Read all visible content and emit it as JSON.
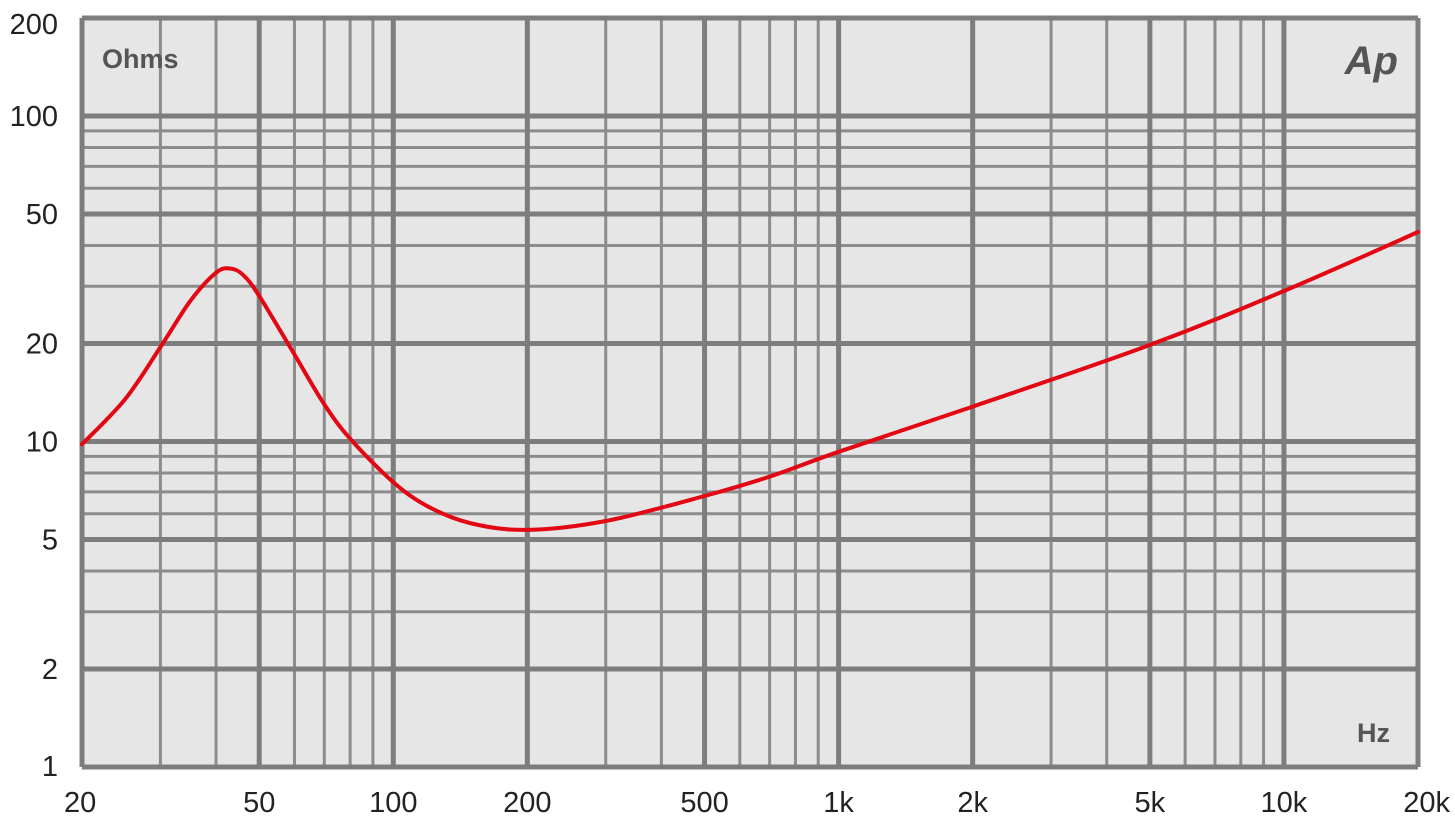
{
  "chart_data": {
    "type": "line",
    "x_scale": "log",
    "y_scale": "log",
    "xlim": [
      20,
      20000
    ],
    "ylim": [
      1,
      200
    ],
    "x_ticks": [
      {
        "value": 20,
        "label": "20"
      },
      {
        "value": 50,
        "label": "50"
      },
      {
        "value": 100,
        "label": "100"
      },
      {
        "value": 200,
        "label": "200"
      },
      {
        "value": 500,
        "label": "500"
      },
      {
        "value": 1000,
        "label": "1k"
      },
      {
        "value": 2000,
        "label": "2k"
      },
      {
        "value": 5000,
        "label": "5k"
      },
      {
        "value": 10000,
        "label": "10k"
      },
      {
        "value": 20000,
        "label": "20k"
      }
    ],
    "y_ticks": [
      {
        "value": 1,
        "label": "1"
      },
      {
        "value": 2,
        "label": "2"
      },
      {
        "value": 5,
        "label": "5"
      },
      {
        "value": 10,
        "label": "10"
      },
      {
        "value": 20,
        "label": "20"
      },
      {
        "value": 50,
        "label": "50"
      },
      {
        "value": 100,
        "label": "100"
      },
      {
        "value": 200,
        "label": "200"
      }
    ],
    "y_unit_label": "Ohms",
    "x_unit_label": "Hz",
    "grid": true,
    "legend": "none",
    "series": [
      {
        "color": "#e30613",
        "x": [
          20,
          25,
          30,
          35,
          40,
          43,
          46,
          50,
          60,
          70,
          80,
          100,
          120,
          150,
          200,
          300,
          500,
          700,
          1000,
          2000,
          5000,
          10000,
          20000
        ],
        "y": [
          9.8,
          13.5,
          19.5,
          27,
          33,
          34,
          32.5,
          28,
          18.5,
          13,
          10.2,
          7.5,
          6.3,
          5.6,
          5.35,
          5.7,
          6.8,
          7.8,
          9.3,
          12.8,
          19.8,
          29,
          44
        ]
      }
    ]
  },
  "logo": {
    "text": "Ap"
  },
  "colors": {
    "plot_bg": "#e6e6e6",
    "grid_major": "#7d7d7d",
    "grid_minor": "#8c8c8c",
    "curve": "#e30613"
  }
}
